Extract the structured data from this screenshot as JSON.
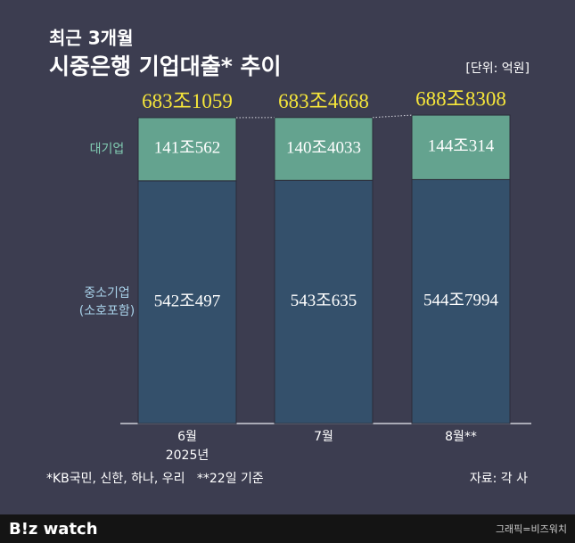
{
  "chart_data": {
    "type": "stacked_bar",
    "title_lines": [
      "최근 3개월",
      "시중은행 기업대출* 추이"
    ],
    "unit": "[단위: 억원]",
    "categories": [
      "6월",
      "7월",
      "8월**"
    ],
    "x_note": "2025년",
    "series": [
      {
        "name": "중소기업\n(소호포함)",
        "color": "#34506b",
        "label_color": "#a9d2ea",
        "values": [
          5420497,
          5430635,
          5447994
        ],
        "value_labels": [
          "542조497",
          "543조635",
          "544조7994"
        ]
      },
      {
        "name": "대기업",
        "color": "#64a38f",
        "label_color": "#82cdb3",
        "values": [
          1410562,
          1404033,
          1440314
        ],
        "value_labels": [
          "141조562",
          "140조4033",
          "144조314"
        ]
      }
    ],
    "totals": [
      6831059,
      6834668,
      6888308
    ],
    "total_labels": [
      "683조1059",
      "683조4668",
      "688조8308"
    ],
    "ylim": [
      0,
      6900000
    ],
    "footnote": "*KB국민, 신한, 하나, 우리   **22일 기준",
    "source": "자료: 각 사",
    "brand": "B!z watch",
    "credit": "그래픽=비즈워치"
  }
}
